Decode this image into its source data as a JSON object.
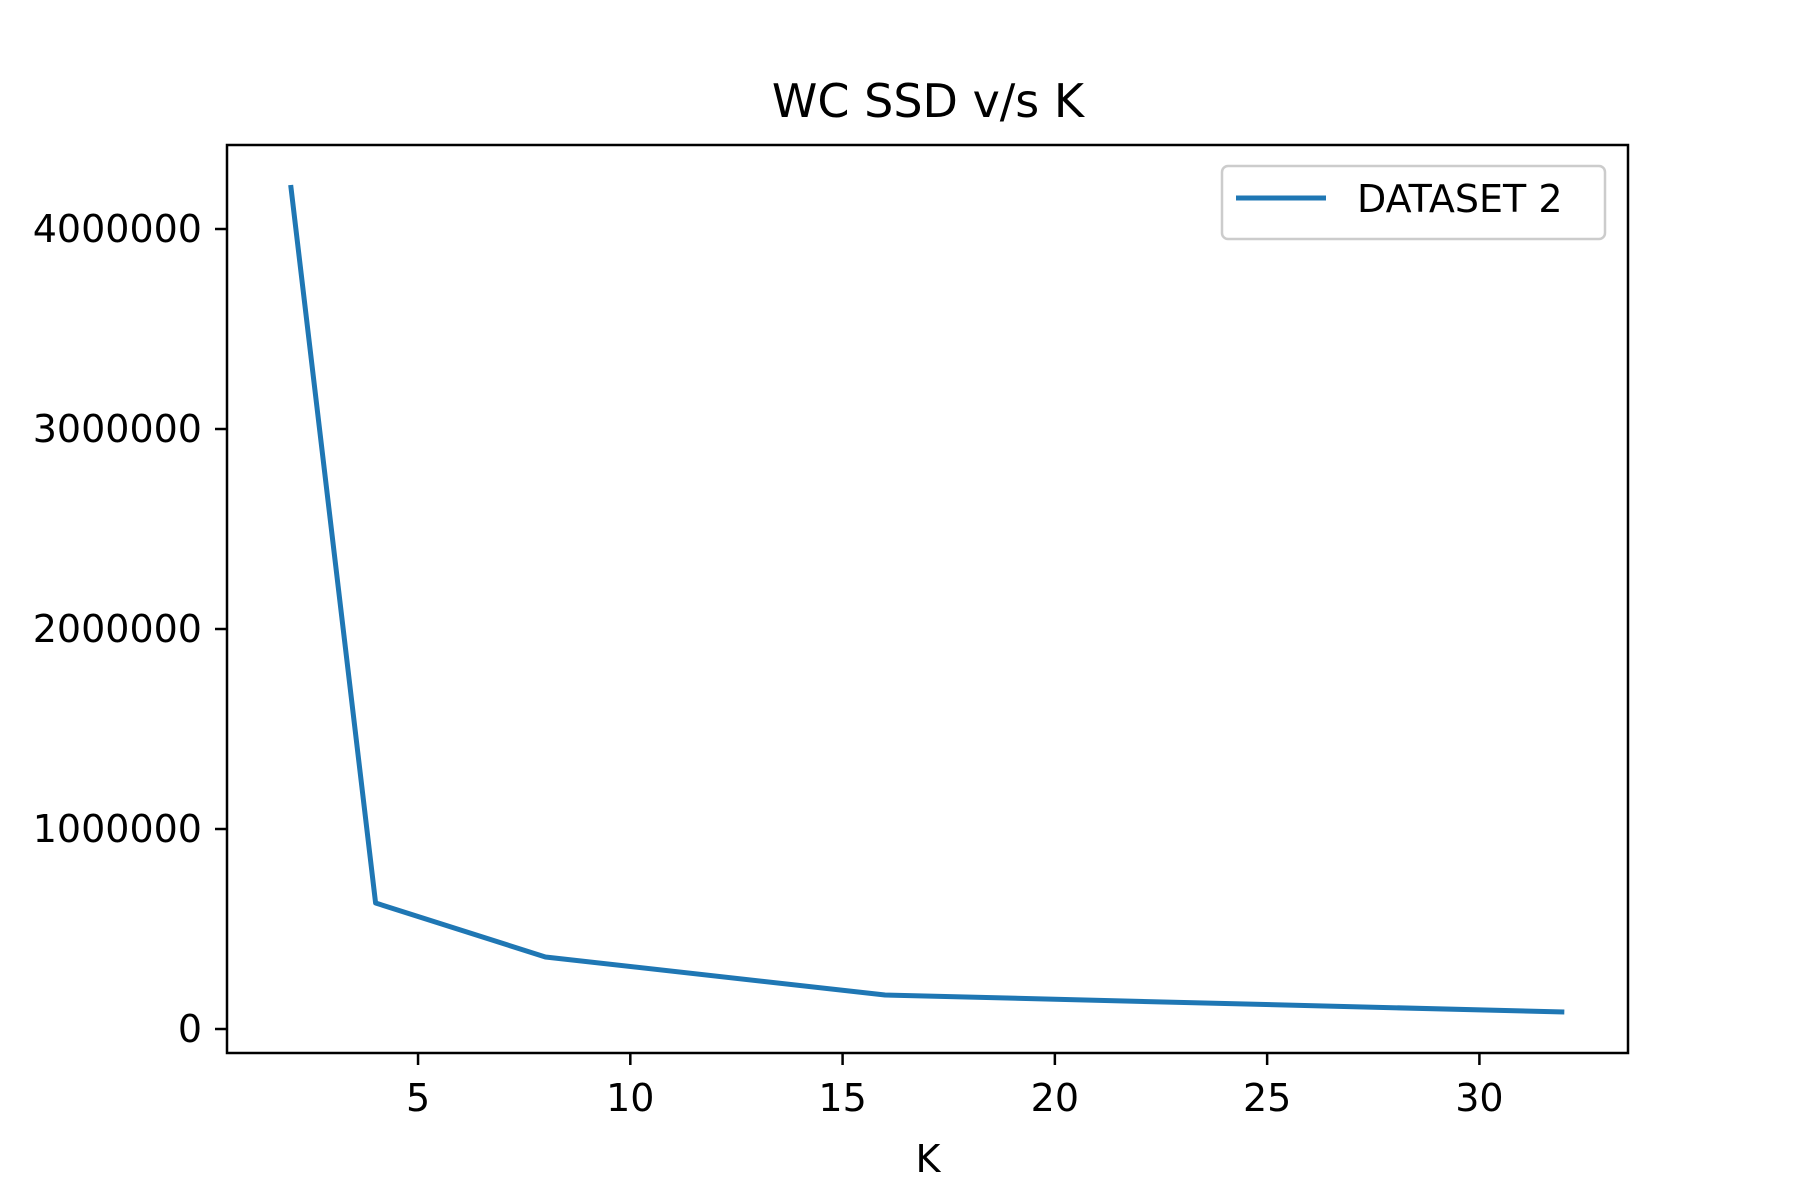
{
  "chart_data": {
    "type": "line",
    "title": "WC SSD v/s K",
    "xlabel": "K",
    "ylabel": "",
    "xlim": [
      0.5,
      33.5
    ],
    "ylim": [
      -120000,
      4420000
    ],
    "xticks": [
      5,
      10,
      15,
      20,
      25,
      30
    ],
    "yticks": [
      0,
      1000000,
      2000000,
      3000000,
      4000000
    ],
    "xtick_labels": [
      "5",
      "10",
      "15",
      "20",
      "25",
      "30"
    ],
    "ytick_labels": [
      "0",
      "1000000",
      "2000000",
      "3000000",
      "4000000"
    ],
    "grid": false,
    "legend_position": "top-right",
    "colors": {
      "series": "#1f77b4",
      "axes": "#000000",
      "legend_border": "#cccccc"
    },
    "series": [
      {
        "name": "DATASET 2",
        "x": [
          2,
          4,
          8,
          16,
          32
        ],
        "y": [
          4220000,
          630000,
          360000,
          170000,
          85000
        ]
      }
    ]
  }
}
